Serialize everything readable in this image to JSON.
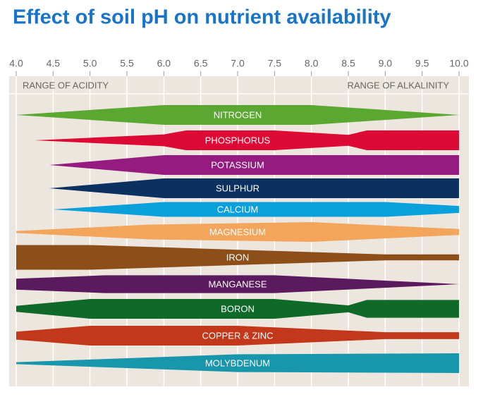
{
  "chart_data": {
    "type": "band",
    "title": "Effect of soil pH on nutrient availability",
    "annotations": [
      "RANGE OF ACIDITY",
      "RANGE OF ALKALINITY"
    ],
    "xlim": [
      4,
      10
    ],
    "xticks": [
      {
        "value": 4,
        "label": "4.0"
      },
      {
        "value": 4.5,
        "label": "4.5"
      },
      {
        "value": 5,
        "label": "5.0"
      },
      {
        "value": 5.5,
        "label": "5.5"
      },
      {
        "value": 6,
        "label": "6.0"
      },
      {
        "value": 6.5,
        "label": "6.5"
      },
      {
        "value": 7,
        "label": "7.0"
      },
      {
        "value": 7.5,
        "label": "7.5"
      },
      {
        "value": 8,
        "label": "8.0"
      },
      {
        "value": 8.5,
        "label": "8.5"
      },
      {
        "value": 9,
        "label": "9.0"
      },
      {
        "value": 9.5,
        "label": "9.5"
      },
      {
        "value": 10,
        "label": "10.0"
      }
    ],
    "grid": true,
    "series": [
      {
        "name": "NITROGEN",
        "color": "#5aa832",
        "x": [
          4,
          6,
          8,
          10
        ],
        "values": [
          0,
          1,
          1,
          0
        ]
      },
      {
        "name": "PHOSPHORUS",
        "color": "#dd0a35",
        "x": [
          4.25,
          6,
          6.3,
          7.5,
          8.5,
          8.75,
          10
        ],
        "values": [
          0,
          0.6,
          1,
          1,
          0.55,
          1,
          1
        ]
      },
      {
        "name": "POTASSIUM",
        "color": "#951b81",
        "x": [
          4.45,
          6,
          10
        ],
        "values": [
          0,
          1,
          1
        ]
      },
      {
        "name": "SULPHUR",
        "color": "#0b3160",
        "x": [
          4.45,
          6,
          10
        ],
        "values": [
          0,
          1,
          1
        ]
      },
      {
        "name": "CALCIUM",
        "color": "#0aa0dc",
        "x": [
          4.5,
          6,
          9,
          10
        ],
        "values": [
          0,
          0.75,
          0.75,
          0.35
        ]
      },
      {
        "name": "MAGNESIUM",
        "color": "#f3a55c",
        "x": [
          4,
          5.8,
          8,
          10
        ],
        "values": [
          0.1,
          0.75,
          1,
          0.3
        ]
      },
      {
        "name": "IRON",
        "color": "#8c4f1a",
        "x": [
          4,
          5,
          9,
          10
        ],
        "values": [
          1.25,
          1.25,
          0.3,
          0.3
        ]
      },
      {
        "name": "MANGANESE",
        "color": "#5b1a5e",
        "x": [
          4,
          5.2,
          7.5,
          10
        ],
        "values": [
          0.55,
          0.9,
          0.9,
          0
        ]
      },
      {
        "name": "BORON",
        "color": "#0f6a2a",
        "x": [
          4,
          5,
          7.5,
          8.5,
          8.75,
          10
        ],
        "values": [
          0.3,
          1,
          1,
          0.35,
          0.9,
          0.9
        ]
      },
      {
        "name": "COPPER & ZINC",
        "color": "#c3371b",
        "x": [
          4,
          5,
          7,
          9,
          10
        ],
        "values": [
          0.4,
          1,
          1,
          0.35,
          0.35
        ]
      },
      {
        "name": "MOLYBDENUM",
        "color": "#1896ac",
        "x": [
          4,
          7,
          10
        ],
        "values": [
          0.1,
          0.9,
          1
        ]
      }
    ]
  }
}
